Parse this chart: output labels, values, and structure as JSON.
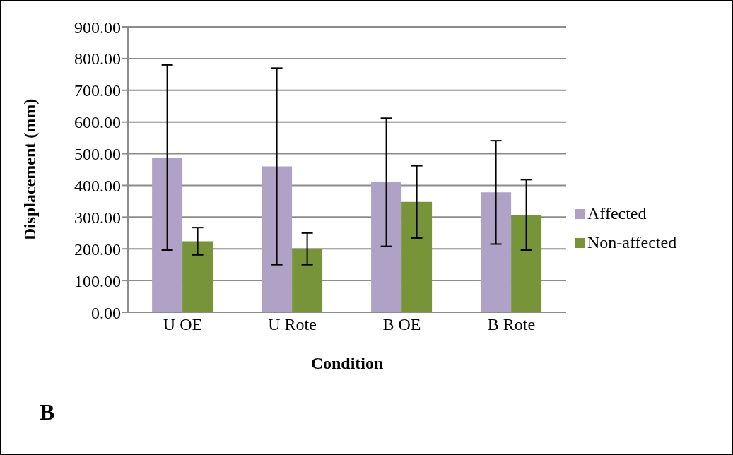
{
  "chart_data": {
    "type": "bar",
    "xlabel": "Condition",
    "ylabel": "Displacement (mm)",
    "categories": [
      "U OE",
      "U Rote",
      "B OE",
      "B Rote"
    ],
    "series": [
      {
        "name": "Affected",
        "color": "#b0a1c6",
        "values": [
          488,
          460,
          410,
          378
        ],
        "errors": [
          292,
          310,
          202,
          163
        ]
      },
      {
        "name": "Non-affected",
        "color": "#779439",
        "values": [
          224,
          200,
          348,
          307
        ],
        "errors": [
          43,
          50,
          114,
          111
        ]
      }
    ],
    "ylim": [
      0,
      900
    ],
    "yticks": [
      {
        "value": 0,
        "label": "0.00"
      },
      {
        "value": 100,
        "label": "100.00"
      },
      {
        "value": 200,
        "label": "200.00"
      },
      {
        "value": 300,
        "label": "300.00"
      },
      {
        "value": 400,
        "label": "400.00"
      },
      {
        "value": 500,
        "label": "500.00"
      },
      {
        "value": 600,
        "label": "600.00"
      },
      {
        "value": 700,
        "label": "700.00"
      },
      {
        "value": 800,
        "label": "800.00"
      },
      {
        "value": 900,
        "label": "900.00"
      }
    ],
    "grid": "y",
    "legend": "right",
    "annotations": [
      "B"
    ]
  }
}
